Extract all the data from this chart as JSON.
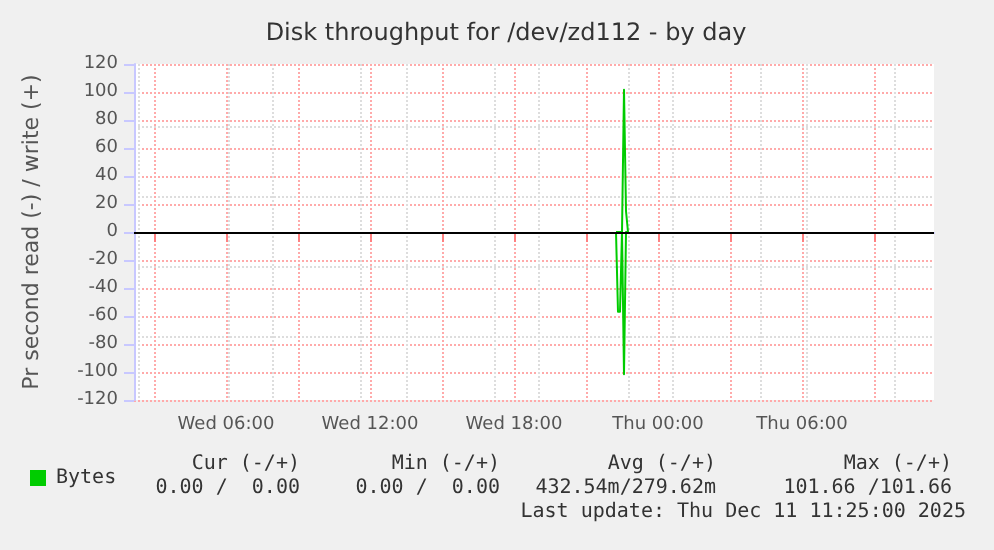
{
  "chart_data": {
    "type": "line",
    "title": "Disk throughput for /dev/zd112 - by day",
    "ylabel": "Pr second read (-) / write (+)",
    "xlim": [
      "2025-12-10T02:10",
      "2025-12-11T11:30"
    ],
    "xticks": [
      {
        "value": "2025-12-10T03:00",
        "label": null
      },
      {
        "value": "2025-12-10T06:00",
        "label": "Wed 06:00"
      },
      {
        "value": "2025-12-10T09:00",
        "label": null
      },
      {
        "value": "2025-12-10T12:00",
        "label": "Wed 12:00"
      },
      {
        "value": "2025-12-10T15:00",
        "label": null
      },
      {
        "value": "2025-12-10T18:00",
        "label": "Wed 18:00"
      },
      {
        "value": "2025-12-10T21:00",
        "label": null
      },
      {
        "value": "2025-12-11T00:00",
        "label": "Thu 00:00"
      },
      {
        "value": "2025-12-11T03:00",
        "label": null
      },
      {
        "value": "2025-12-11T06:00",
        "label": "Thu 06:00"
      },
      {
        "value": "2025-12-11T09:00",
        "label": null
      }
    ],
    "ylim": [
      -120,
      120
    ],
    "yticks": [
      -120,
      -100,
      -80,
      -60,
      -40,
      -20,
      0,
      20,
      40,
      60,
      80,
      100,
      120
    ],
    "grid": true,
    "legend": "bottom left",
    "series": [
      {
        "name": "Bytes",
        "color": "#00cc00",
        "x": [
          "2025-12-10T22:15",
          "2025-12-10T22:20",
          "2025-12-10T22:25",
          "2025-12-10T22:30",
          "2025-12-10T22:35",
          "2025-12-10T22:40",
          "2025-12-10T22:45"
        ],
        "values": [
          0,
          -57,
          -57,
          0,
          -101.66,
          0,
          0
        ]
      },
      {
        "color": "#00cc00",
        "x": [
          "2025-12-10T22:15",
          "2025-12-10T22:30",
          "2025-12-10T22:35",
          "2025-12-10T22:40",
          "2025-12-10T22:45"
        ],
        "values": [
          0,
          0,
          101.66,
          15,
          0
        ]
      }
    ],
    "ref_lines": [
      {
        "axis": "y",
        "value": 0,
        "color": "#000000"
      }
    ],
    "annotations": [
      "Cur (-/+)",
      "Min (-/+)",
      "Avg (-/+)",
      "Max (-/+)",
      "0.00 /  0.00",
      "0.00 /  0.00",
      "432.54m/279.62m",
      "101.66 /101.66",
      "Last update: Thu Dec 11 11:25:00 2025"
    ]
  }
}
